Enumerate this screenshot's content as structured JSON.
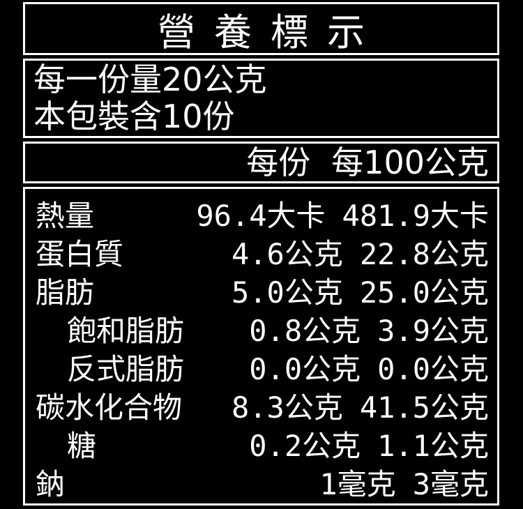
{
  "colors": {
    "background": "#000000",
    "text": "#ffffff",
    "border": "#ffffff"
  },
  "label": {
    "title": "營養標示",
    "serving_info": {
      "line1": "每一份量20公克",
      "line2": "本包裝含10份"
    },
    "columns": {
      "per_serving": "每份",
      "per_100g": "每100公克"
    },
    "rows": [
      {
        "name": "熱量",
        "indent": false,
        "per_serving": {
          "value": "96.4",
          "unit": "大卡"
        },
        "per_100g": {
          "value": "481.9",
          "unit": "大卡"
        }
      },
      {
        "name": "蛋白質",
        "indent": false,
        "per_serving": {
          "value": "4.6",
          "unit": "公克"
        },
        "per_100g": {
          "value": "22.8",
          "unit": "公克"
        }
      },
      {
        "name": "脂肪",
        "indent": false,
        "per_serving": {
          "value": "5.0",
          "unit": "公克"
        },
        "per_100g": {
          "value": "25.0",
          "unit": "公克"
        }
      },
      {
        "name": "飽和脂肪",
        "indent": true,
        "per_serving": {
          "value": "0.8",
          "unit": "公克"
        },
        "per_100g": {
          "value": "3.9",
          "unit": "公克"
        }
      },
      {
        "name": "反式脂肪",
        "indent": true,
        "per_serving": {
          "value": "0.0",
          "unit": "公克"
        },
        "per_100g": {
          "value": "0.0",
          "unit": "公克"
        }
      },
      {
        "name": "碳水化合物",
        "indent": false,
        "per_serving": {
          "value": "8.3",
          "unit": "公克"
        },
        "per_100g": {
          "value": "41.5",
          "unit": "公克"
        }
      },
      {
        "name": "糖",
        "indent": true,
        "per_serving": {
          "value": "0.2",
          "unit": "公克"
        },
        "per_100g": {
          "value": "1.1",
          "unit": "公克"
        }
      },
      {
        "name": "鈉",
        "indent": false,
        "per_serving": {
          "value": "1",
          "unit": "毫克"
        },
        "per_100g": {
          "value": "3",
          "unit": "毫克"
        }
      }
    ]
  }
}
